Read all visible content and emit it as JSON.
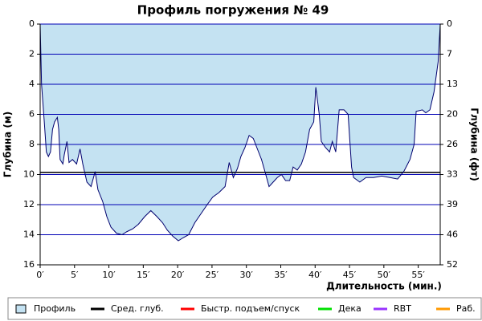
{
  "chart_data": {
    "type": "area",
    "title": "Профиль погружения № 49",
    "ylabel": "Глубина (м)",
    "y2label": "Глубина (фт)",
    "xlabel": "Длительность (мин.)",
    "profile": {
      "name": "Профиль",
      "color": "#c4e2f2",
      "line_color": "#00006e",
      "x": [
        0,
        0.2,
        0.6,
        0.9,
        1.2,
        1.5,
        1.8,
        2.1,
        2.5,
        2.7,
        2.9,
        3.3,
        3.5,
        3.9,
        4.2,
        4.7,
        5.3,
        5.8,
        6.2,
        6.8,
        7.4,
        8.0,
        8.4,
        9.1,
        9.7,
        10.3,
        11.1,
        11.9,
        12.6,
        13.5,
        14.3,
        15.2,
        16.1,
        17.0,
        17.8,
        18.5,
        19.3,
        20.1,
        20.8,
        21.6,
        22.5,
        23.4,
        24.3,
        25.1,
        26.0,
        26.9,
        27.5,
        28.1,
        28.7,
        29.2,
        29.8,
        30.4,
        31.0,
        31.6,
        32.2,
        32.7,
        33.3,
        33.9,
        34.5,
        35.1,
        35.7,
        36.3,
        36.8,
        37.4,
        38.0,
        38.6,
        39.2,
        39.8,
        40.1,
        40.6,
        40.9,
        41.5,
        42.1,
        42.5,
        43.0,
        43.5,
        44.2,
        44.8,
        45.3,
        45.6,
        46.5,
        47.4,
        48.5,
        49.7,
        50.9,
        52.0,
        52.9,
        53.8,
        54.4,
        54.7,
        55.6,
        56.1,
        56.7,
        57.3,
        57.9,
        58.2
      ],
      "values": [
        0,
        4,
        6.5,
        8.5,
        8.8,
        8.5,
        7,
        6.5,
        6.2,
        7,
        9,
        9.3,
        8.7,
        7.8,
        9.2,
        9,
        9.3,
        8.3,
        9.3,
        10.5,
        10.8,
        9.8,
        11,
        11.8,
        12.8,
        13.5,
        13.9,
        14,
        13.8,
        13.6,
        13.3,
        12.8,
        12.4,
        12.8,
        13.2,
        13.7,
        14.1,
        14.4,
        14.2,
        14,
        13.2,
        12.6,
        12,
        11.5,
        11.2,
        10.8,
        9.2,
        10.2,
        9.6,
        8.8,
        8.2,
        7.4,
        7.6,
        8.3,
        9,
        9.8,
        10.8,
        10.5,
        10.2,
        10,
        10.4,
        10.4,
        9.5,
        9.7,
        9.3,
        8.5,
        7,
        6.5,
        4.2,
        6,
        7.8,
        8.2,
        8.5,
        7.8,
        8.5,
        5.7,
        5.7,
        6,
        9.5,
        10.2,
        10.5,
        10.2,
        10.2,
        10.1,
        10.2,
        10.3,
        9.8,
        9,
        8,
        5.8,
        5.7,
        5.9,
        5.7,
        4.5,
        2.5,
        0
      ]
    },
    "avg_depth": {
      "name": "Сред. глуб.",
      "color": "#000000",
      "value": 9.85
    },
    "legend": [
      {
        "name": "Быстр. подъем/спуск",
        "color": "#ff0000"
      },
      {
        "name": "Дека",
        "color": "#00e000"
      },
      {
        "name": "RBT",
        "color": "#9933ff"
      },
      {
        "name": "Раб.",
        "color": "#ff9900"
      }
    ],
    "xlim": [
      0,
      58.2
    ],
    "ylim": [
      0,
      16
    ],
    "y2lim": [
      0,
      52.49
    ],
    "xticks": [
      {
        "value": 0,
        "label": "0′"
      },
      {
        "value": 5,
        "label": "5′"
      },
      {
        "value": 10,
        "label": "10′"
      },
      {
        "value": 15,
        "label": "15′"
      },
      {
        "value": 20,
        "label": "20′"
      },
      {
        "value": 25,
        "label": "25′"
      },
      {
        "value": 30,
        "label": "30′"
      },
      {
        "value": 35,
        "label": "35′"
      },
      {
        "value": 40,
        "label": "40′"
      },
      {
        "value": 45,
        "label": "45′"
      },
      {
        "value": 50,
        "label": "50′"
      },
      {
        "value": 55,
        "label": "55′"
      }
    ],
    "yticks": [
      0,
      2,
      4,
      6,
      8,
      10,
      12,
      14,
      16
    ],
    "y2ticks": [
      0,
      {
        "value": 6.56,
        "label": "7"
      },
      {
        "value": 13.12,
        "label": "13"
      },
      {
        "value": 19.69,
        "label": "20"
      },
      {
        "value": 26.25,
        "label": "26"
      },
      {
        "value": 32.81,
        "label": "33"
      },
      {
        "value": 39.37,
        "label": "39"
      },
      {
        "value": 45.93,
        "label": "46"
      },
      {
        "value": 52.49,
        "label": "52"
      }
    ],
    "grid": true,
    "grid_color": "#0000b4",
    "inverted": true
  }
}
